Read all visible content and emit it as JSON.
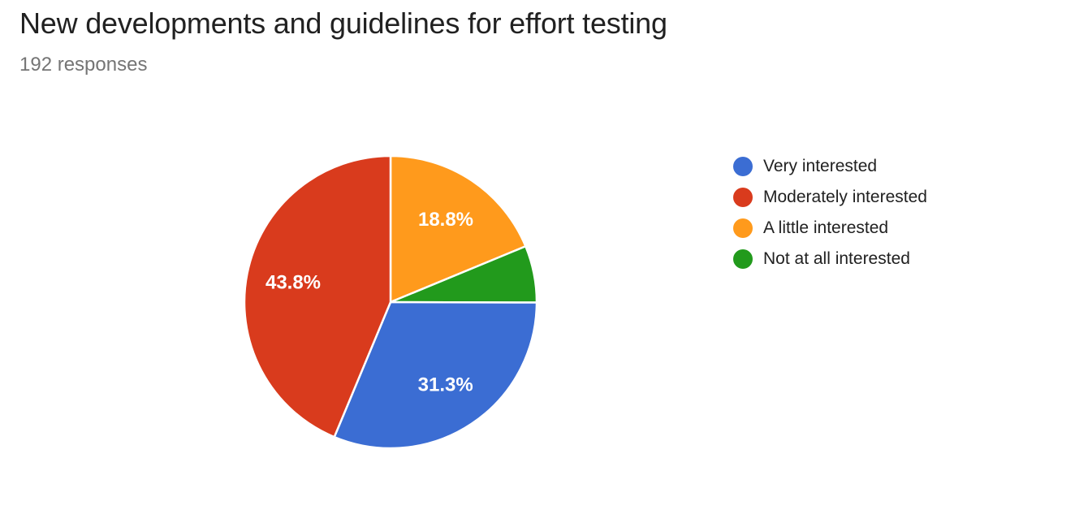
{
  "header": {
    "title": "New developments and guidelines for effort testing",
    "responses_label": "192 responses"
  },
  "chart_data": {
    "type": "pie",
    "title": "New developments and guidelines for effort testing",
    "subtitle": "192 responses",
    "total_responses": 192,
    "legend_position": "right",
    "start_angle_deg": 0,
    "clockwise": true,
    "slices": [
      {
        "label": "Very interested",
        "percent": 31.3,
        "percent_label": "31.3%",
        "show_percent_label": true,
        "color": "#3b6dd3"
      },
      {
        "label": "Moderately interested",
        "percent": 43.8,
        "percent_label": "43.8%",
        "show_percent_label": true,
        "color": "#d93b1d"
      },
      {
        "label": "A little interested",
        "percent": 18.8,
        "percent_label": "18.8%",
        "show_percent_label": true,
        "color": "#ff9a1c"
      },
      {
        "label": "Not at all interested",
        "percent": 6.3,
        "percent_label": "",
        "show_percent_label": false,
        "color": "#229a1c"
      }
    ],
    "pie_draw_order_clockwise_from_top": [
      2,
      3,
      0,
      1
    ],
    "label_color": "#ffffff",
    "slice_border_color": "#ffffff"
  }
}
